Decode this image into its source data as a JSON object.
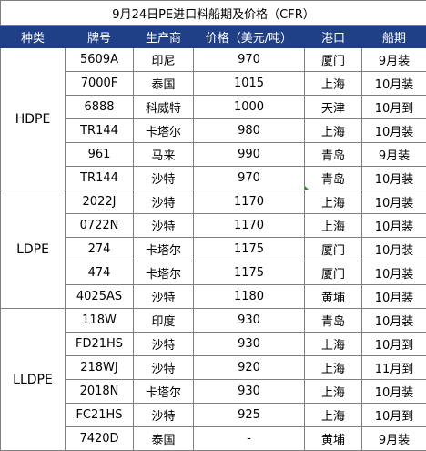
{
  "title": "9月24日PE进口料船期及价格（CFR）",
  "headers": [
    "种类",
    "牌号",
    "生产商",
    "价格（美元/吨）",
    "港口",
    "船期"
  ],
  "groups": [
    {
      "category": "HDPE",
      "rows": [
        {
          "grade": "5609A",
          "producer": "印尼",
          "price": "970",
          "port": "厦门",
          "shipment": "9月装"
        },
        {
          "grade": "7000F",
          "producer": "泰国",
          "price": "1015",
          "port": "上海",
          "shipment": "10月装"
        },
        {
          "grade": "6888",
          "producer": "科威特",
          "price": "1000",
          "port": "天津",
          "shipment": "10月到"
        },
        {
          "grade": "TR144",
          "producer": "卡塔尔",
          "price": "980",
          "port": "上海",
          "shipment": "10月装"
        },
        {
          "grade": "961",
          "producer": "马来",
          "price": "990",
          "port": "青岛",
          "shipment": "9月装"
        },
        {
          "grade": "TR144",
          "producer": "沙特",
          "price": "970",
          "port": "青岛",
          "shipment": "10月装"
        }
      ]
    },
    {
      "category": "LDPE",
      "rows": [
        {
          "grade": "2022J",
          "producer": "沙特",
          "price": "1170",
          "port": "上海",
          "shipment": "10月装"
        },
        {
          "grade": "0722N",
          "producer": "沙特",
          "price": "1170",
          "port": "上海",
          "shipment": "10月装"
        },
        {
          "grade": "274",
          "producer": "卡塔尔",
          "price": "1175",
          "port": "厦门",
          "shipment": "10月装"
        },
        {
          "grade": "474",
          "producer": "卡塔尔",
          "price": "1175",
          "port": "厦门",
          "shipment": "10月装"
        },
        {
          "grade": "4025AS",
          "producer": "沙特",
          "price": "1180",
          "port": "黄埔",
          "shipment": "10月装"
        }
      ]
    },
    {
      "category": "LLDPE",
      "rows": [
        {
          "grade": "118W",
          "producer": "印度",
          "price": "930",
          "port": "青岛",
          "shipment": "10月装"
        },
        {
          "grade": "FD21HS",
          "producer": "沙特",
          "price": "930",
          "port": "上海",
          "shipment": "10月到"
        },
        {
          "grade": "218WJ",
          "producer": "沙特",
          "price": "920",
          "port": "上海",
          "shipment": "11月到"
        },
        {
          "grade": "2018N",
          "producer": "卡塔尔",
          "price": "930",
          "port": "上海",
          "shipment": "10月装"
        },
        {
          "grade": "FC21HS",
          "producer": "沙特",
          "price": "925",
          "port": "上海",
          "shipment": "10月到"
        },
        {
          "grade": "7420D",
          "producer": "泰国",
          "price": "-",
          "port": "黄埔",
          "shipment": "9月装"
        }
      ]
    }
  ],
  "colors": {
    "header_bg": "#1f3f86",
    "header_text": "#ffffff",
    "border": "#7f7f7f"
  }
}
